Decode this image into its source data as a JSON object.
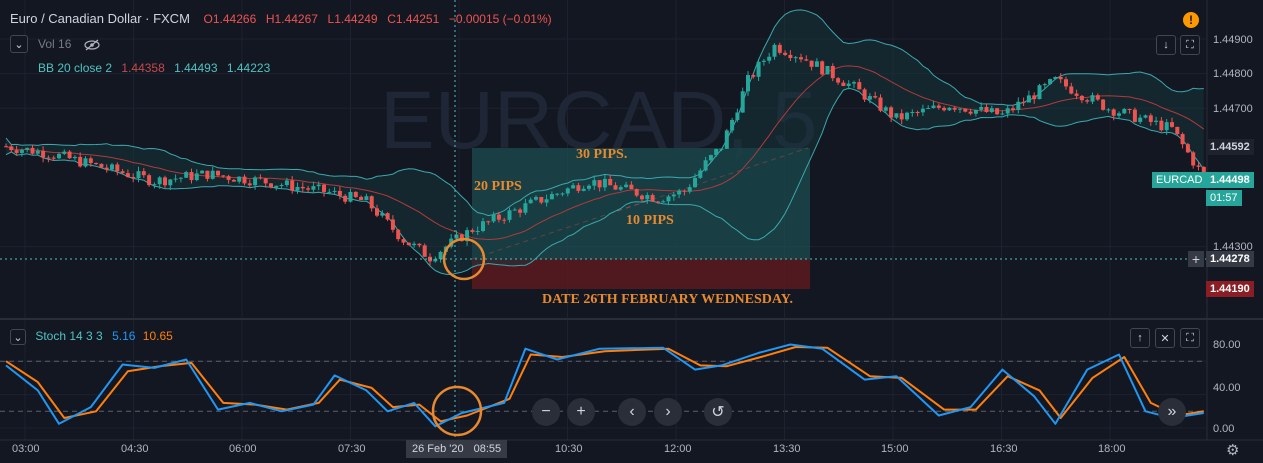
{
  "header": {
    "symbol_title": "Euro / Canadian Dollar · FXCM",
    "open": "O1.44266",
    "high": "H1.44267",
    "low": "L1.44249",
    "close": "C1.44251",
    "change": "−0.00015 (−0.01%)",
    "vol_label": "Vol 16",
    "bb_label": "BB 20 close 2",
    "bb_basis": "1.44358",
    "bb_upper": "1.44493",
    "bb_lower": "1.44223",
    "watermark": "EURCAD, 5"
  },
  "stoch_legend": {
    "label": "Stoch 14 3 3",
    "k": "5.16",
    "d": "10.65"
  },
  "annotations": {
    "pips30": "30 PIPS.",
    "pips20": "20 PIPS",
    "pips10": "10 PIPS",
    "date_note": "DATE 26TH FEBRUARY WEDNESDAY."
  },
  "price_axis": {
    "ticks": [
      "1.44900",
      "1.44800",
      "1.44700",
      "1.44300"
    ],
    "tag_upper": "1.44592",
    "tag_symbol": "EURCAD",
    "tag_last": "1.44498",
    "tag_countdown": "01:57",
    "tag_cross": "1.44278",
    "tag_stop": "1.44190"
  },
  "stoch_axis": {
    "ticks": [
      "80.00",
      "40.00",
      "0.00"
    ]
  },
  "time_axis": {
    "ticks": [
      "03:00",
      "04:30",
      "06:00",
      "07:30",
      "10:30",
      "12:00",
      "13:30",
      "15:00",
      "16:30",
      "18:00"
    ],
    "crosshair_date": "26 Feb '20",
    "crosshair_time": "08:55"
  },
  "icons": {
    "visibility": "eye-slash-icon",
    "collapse": "chevron-down-icon",
    "alert": "exclamation-icon",
    "settings": "gear-icon"
  },
  "colors": {
    "bull": "#26a69a",
    "bear": "#ef5350",
    "band": "#3aa9ad",
    "basis": "#b23a3a",
    "stoch_k": "#2196f3",
    "stoch_d": "#ff7f0e",
    "target_zone": "#1c4d52",
    "stop_zone": "#5a1a1f",
    "annotation": "#e8892f"
  },
  "chart_data": {
    "type": "candlestick",
    "price_ticks": [
      1.449,
      1.448,
      1.447,
      1.443
    ],
    "stoch_ticks": [
      80,
      40,
      0
    ],
    "anchors": [
      [
        0,
        1.4459
      ],
      [
        8,
        1.4457
      ],
      [
        18,
        1.4453
      ],
      [
        28,
        1.4449
      ],
      [
        38,
        1.4451
      ],
      [
        48,
        1.4449
      ],
      [
        60,
        1.4446
      ],
      [
        68,
        1.4443
      ],
      [
        75,
        1.4432
      ],
      [
        80,
        1.4427
      ],
      [
        88,
        1.4435
      ],
      [
        100,
        1.4443
      ],
      [
        110,
        1.4449
      ],
      [
        118,
        1.4446
      ],
      [
        123,
        1.4444
      ],
      [
        128,
        1.4446
      ],
      [
        132,
        1.4454
      ],
      [
        135,
        1.4459
      ],
      [
        140,
        1.4478
      ],
      [
        145,
        1.4488
      ],
      [
        150,
        1.4485
      ],
      [
        160,
        1.4476
      ],
      [
        168,
        1.4467
      ],
      [
        178,
        1.4471
      ],
      [
        188,
        1.4468
      ],
      [
        198,
        1.4478
      ],
      [
        208,
        1.447
      ],
      [
        220,
        1.4464
      ],
      [
        226,
        1.445
      ]
    ],
    "stoch_k": [
      [
        0,
        75
      ],
      [
        6,
        45
      ],
      [
        10,
        5
      ],
      [
        16,
        25
      ],
      [
        22,
        76
      ],
      [
        28,
        72
      ],
      [
        34,
        82
      ],
      [
        40,
        22
      ],
      [
        46,
        30
      ],
      [
        52,
        20
      ],
      [
        58,
        28
      ],
      [
        62,
        63
      ],
      [
        68,
        45
      ],
      [
        72,
        20
      ],
      [
        77,
        30
      ],
      [
        81,
        2
      ],
      [
        86,
        18
      ],
      [
        94,
        30
      ],
      [
        98,
        95
      ],
      [
        104,
        82
      ],
      [
        112,
        95
      ],
      [
        124,
        96
      ],
      [
        130,
        70
      ],
      [
        135,
        75
      ],
      [
        142,
        90
      ],
      [
        148,
        100
      ],
      [
        154,
        95
      ],
      [
        162,
        58
      ],
      [
        168,
        62
      ],
      [
        176,
        15
      ],
      [
        182,
        25
      ],
      [
        188,
        70
      ],
      [
        194,
        38
      ],
      [
        198,
        5
      ],
      [
        204,
        70
      ],
      [
        210,
        88
      ],
      [
        215,
        20
      ],
      [
        220,
        12
      ],
      [
        226,
        18
      ]
    ],
    "stoch_d": [
      [
        0,
        80
      ],
      [
        6,
        55
      ],
      [
        11,
        12
      ],
      [
        17,
        20
      ],
      [
        23,
        68
      ],
      [
        29,
        74
      ],
      [
        35,
        78
      ],
      [
        41,
        30
      ],
      [
        47,
        28
      ],
      [
        53,
        22
      ],
      [
        59,
        30
      ],
      [
        63,
        58
      ],
      [
        69,
        48
      ],
      [
        73,
        25
      ],
      [
        78,
        28
      ],
      [
        82,
        8
      ],
      [
        87,
        15
      ],
      [
        95,
        35
      ],
      [
        99,
        88
      ],
      [
        105,
        85
      ],
      [
        113,
        92
      ],
      [
        125,
        95
      ],
      [
        131,
        75
      ],
      [
        136,
        74
      ],
      [
        143,
        86
      ],
      [
        149,
        97
      ],
      [
        155,
        96
      ],
      [
        163,
        62
      ],
      [
        169,
        60
      ],
      [
        177,
        22
      ],
      [
        183,
        22
      ],
      [
        189,
        62
      ],
      [
        195,
        45
      ],
      [
        199,
        12
      ],
      [
        205,
        60
      ],
      [
        211,
        85
      ],
      [
        216,
        30
      ],
      [
        221,
        15
      ],
      [
        226,
        20
      ]
    ]
  }
}
